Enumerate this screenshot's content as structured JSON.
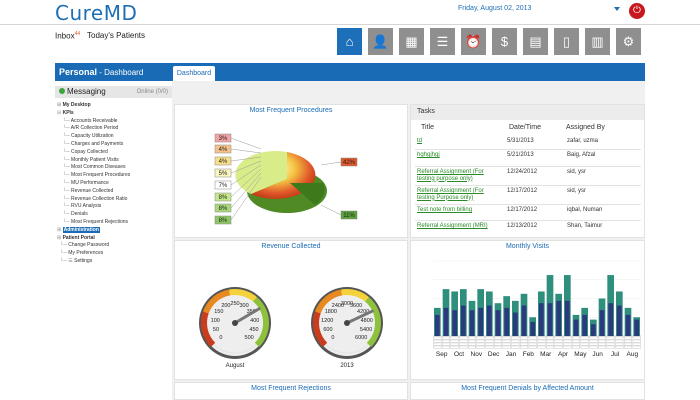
{
  "app": {
    "logo": "CureMD",
    "date": "Friday, August 02, 2013"
  },
  "nav": {
    "inbox": "Inbox",
    "inbox_count": "44",
    "today_patients": "Today's Patients"
  },
  "toolbar": [
    {
      "icon": "home-icon",
      "active": true
    },
    {
      "icon": "user-icon"
    },
    {
      "icon": "calendar-icon"
    },
    {
      "icon": "database-icon"
    },
    {
      "icon": "alarm-clock-icon"
    },
    {
      "icon": "dollar-icon"
    },
    {
      "icon": "money-icon"
    },
    {
      "icon": "book-icon"
    },
    {
      "icon": "film-icon"
    },
    {
      "icon": "gear-icon"
    }
  ],
  "sidebar": {
    "title": "Personal",
    "subtitle": "- Dashboard",
    "messaging": "Messaging",
    "online": "Online (0/0)",
    "tree": [
      {
        "label": "My Desktop",
        "bold": true,
        "prefix": "⊞ "
      },
      {
        "label": "KPIs",
        "bold": true,
        "prefix": "⊟ "
      },
      {
        "label": "Accounts Receivable",
        "prefix": "    └─ "
      },
      {
        "label": "A/R Collection Period",
        "prefix": "    └─ "
      },
      {
        "label": "Capacity Utilization",
        "prefix": "    └─ "
      },
      {
        "label": "Charges and Payments",
        "prefix": "    └─ "
      },
      {
        "label": "Copay Collected",
        "prefix": "    └─ "
      },
      {
        "label": "Monthly Patient Visits",
        "prefix": "    └─ "
      },
      {
        "label": "Most Common Diseases",
        "prefix": "    └─ "
      },
      {
        "label": "Most Frequent Procedures",
        "prefix": "    └─ "
      },
      {
        "label": "MU Performance",
        "prefix": "    └─ "
      },
      {
        "label": "Revenue Collected",
        "prefix": "    └─ "
      },
      {
        "label": "Revenue Collection Ratio",
        "prefix": "    └─ "
      },
      {
        "label": "RVU Analysis",
        "prefix": "    └─ "
      },
      {
        "label": "Denials",
        "prefix": "    └─ "
      },
      {
        "label": "Most Frequent Rejections",
        "prefix": "    └─ "
      },
      {
        "label": "Administration",
        "bold": true,
        "prefix": "⊞ ",
        "selected": true
      },
      {
        "label": "Patient Portal",
        "bold": true,
        "prefix": "⊞ "
      },
      {
        "label": "Change Password",
        "prefix": "  └─ "
      },
      {
        "label": "My Preferences",
        "prefix": "  └─ "
      },
      {
        "label": "Settings",
        "prefix": "  └─ ☰ "
      }
    ]
  },
  "tabs": [
    {
      "label": "Dashboard"
    }
  ],
  "panels": {
    "procedures": "Most Frequent Procedures",
    "tasks": "Tasks",
    "revenue": "Revenue Collected",
    "visits": "Monthly Visits",
    "rejections": "Most Frequent Rejections",
    "denials": "Most Frequent Denials by Affected Amount"
  },
  "tasks": {
    "columns": [
      "Title",
      "Date/Time",
      "Assigned By"
    ],
    "rows": [
      {
        "title": "td",
        "date": "5/31/2013",
        "by": "zafar, uzma"
      },
      {
        "title": "hghgjhgj",
        "date": "5/21/2013",
        "by": "Baig, Afzal"
      },
      {
        "title": "Referral Assignment (For testing purpose only)",
        "date": "12/24/2012",
        "by": "sid, ysr"
      },
      {
        "title": "Referral Assignment (For testing Purpose only)",
        "date": "12/17/2012",
        "by": "sid, ysr"
      },
      {
        "title": "Test note from billing",
        "date": "12/17/2012",
        "by": "iqbal, Numan"
      },
      {
        "title": "Referral Assignment (MRI)",
        "date": "12/13/2012",
        "by": "Shan, Taimur"
      }
    ]
  },
  "pie": {
    "labels": [
      "3%",
      "4%",
      "4%",
      "5%",
      "7%",
      "8%",
      "8%",
      "8%",
      "42%",
      "11%"
    ],
    "colors": [
      "#f4a3a3",
      "#f7c28a",
      "#f7e08a",
      "#fbf6c0",
      "#ffffff",
      "#c5e88b",
      "#a8d878",
      "#8ec866",
      "#e0572a",
      "#5aa13a"
    ]
  },
  "gauges": [
    {
      "label": "August",
      "ticks": [
        "0",
        "50",
        "100",
        "150",
        "200",
        "250",
        "300",
        "350",
        "400",
        "450",
        "500"
      ],
      "value_fraction": 0.72
    },
    {
      "label": "2013",
      "ticks": [
        "0",
        "600",
        "1200",
        "1800",
        "2400",
        "3000",
        "3600",
        "4200",
        "4800",
        "5400",
        "6000"
      ],
      "value_fraction": 0.74
    }
  ],
  "chart_data": {
    "type": "bar",
    "title": "Monthly Visits",
    "categories": [
      "Sep",
      "",
      "Oct",
      "",
      "Nov",
      "",
      "Dec",
      "",
      "Jan",
      "",
      "Feb",
      "",
      "Mar",
      "",
      "Apr",
      "",
      "May",
      "",
      "Jun",
      "",
      "Jul",
      "",
      "Aug",
      ""
    ],
    "x_labels": [
      "Sep",
      "Oct",
      "Nov",
      "Dec",
      "Jan",
      "Feb",
      "Mar",
      "Apr",
      "May",
      "Jun",
      "Jul",
      "Aug"
    ],
    "ylim": [
      0,
      160
    ],
    "series": [
      {
        "values": [
          60,
          100,
          95,
          100,
          75,
          100,
          95,
          70,
          85,
          75,
          90,
          40,
          95,
          130,
          90,
          130,
          45,
          60,
          35,
          80,
          130,
          95,
          60,
          40
        ]
      },
      {
        "values": [
          45,
          60,
          55,
          65,
          55,
          60,
          65,
          55,
          60,
          50,
          65,
          30,
          70,
          70,
          75,
          75,
          35,
          45,
          25,
          55,
          70,
          65,
          45,
          35
        ]
      }
    ],
    "colors": [
      "#2f8f7d",
      "#2b3a7f"
    ]
  }
}
